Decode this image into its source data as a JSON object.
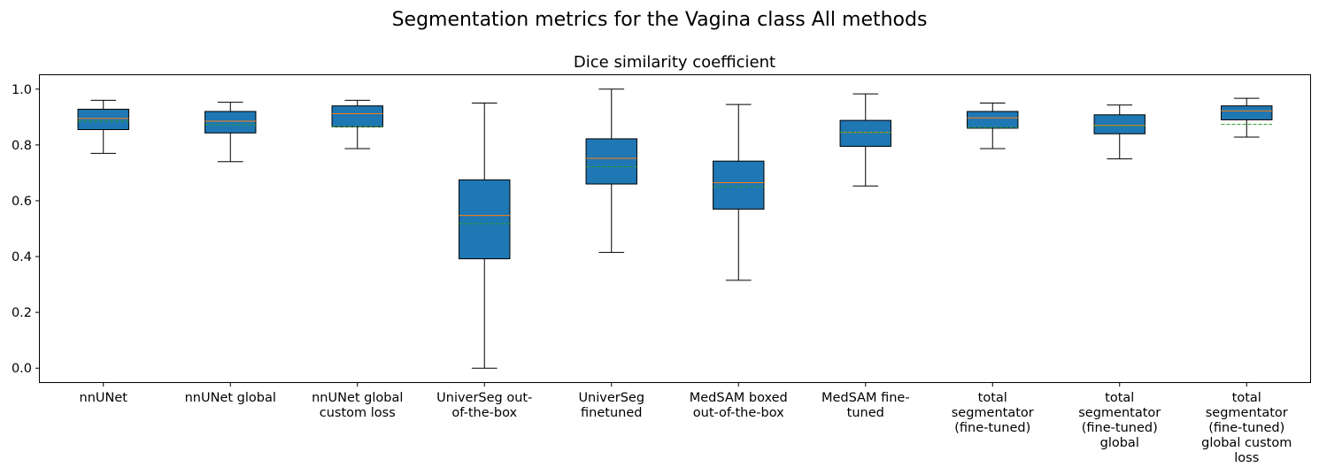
{
  "figure_title": "Segmentation metrics for the Vagina class All methods",
  "chart_data": {
    "type": "boxplot",
    "title": "Dice similarity coefficient",
    "xlabel": "",
    "ylabel": "",
    "ylim": [
      -0.05,
      1.05
    ],
    "yticks": [
      "0.0",
      "0.2",
      "0.4",
      "0.6",
      "0.8",
      "1.0"
    ],
    "grid": false,
    "legend": "none",
    "colors": {
      "box_fill": "#1f77b4",
      "box_edge": "#000000",
      "median": "#ff7f0e",
      "mean": "#2ca02c"
    },
    "categories": [
      "nnUNet",
      "nnUNet global",
      "nnUNet global\ncustom loss",
      "UniverSeg out-\nof-the-box",
      "UniverSeg\nfinetuned",
      "MedSAM boxed\nout-of-the-box",
      "MedSAM fine-\ntuned",
      "total\nsegmentator\n(fine-tuned)",
      "total\nsegmentator\n(fine-tuned)\nglobal",
      "total\nsegmentator\n(fine-tuned)\nglobal custom\nloss"
    ],
    "boxes": [
      {
        "whisker_low": 0.77,
        "q1": 0.855,
        "median": 0.895,
        "mean": 0.885,
        "q3": 0.928,
        "whisker_high": 0.96
      },
      {
        "whisker_low": 0.74,
        "q1": 0.843,
        "median": 0.885,
        "mean": 0.872,
        "q3": 0.92,
        "whisker_high": 0.953
      },
      {
        "whisker_low": 0.787,
        "q1": 0.865,
        "median": 0.912,
        "mean": 0.866,
        "q3": 0.94,
        "whisker_high": 0.96
      },
      {
        "whisker_low": 0.0,
        "q1": 0.392,
        "median": 0.547,
        "mean": 0.518,
        "q3": 0.675,
        "whisker_high": 0.95
      },
      {
        "whisker_low": 0.415,
        "q1": 0.66,
        "median": 0.752,
        "mean": 0.722,
        "q3": 0.822,
        "whisker_high": 1.0
      },
      {
        "whisker_low": 0.315,
        "q1": 0.57,
        "median": 0.665,
        "mean": 0.65,
        "q3": 0.742,
        "whisker_high": 0.945
      },
      {
        "whisker_low": 0.653,
        "q1": 0.795,
        "median": 0.845,
        "mean": 0.845,
        "q3": 0.888,
        "whisker_high": 0.983
      },
      {
        "whisker_low": 0.787,
        "q1": 0.86,
        "median": 0.897,
        "mean": 0.862,
        "q3": 0.92,
        "whisker_high": 0.95
      },
      {
        "whisker_low": 0.75,
        "q1": 0.84,
        "median": 0.87,
        "mean": 0.868,
        "q3": 0.908,
        "whisker_high": 0.943
      },
      {
        "whisker_low": 0.828,
        "q1": 0.89,
        "median": 0.922,
        "mean": 0.874,
        "q3": 0.94,
        "whisker_high": 0.967
      }
    ]
  }
}
